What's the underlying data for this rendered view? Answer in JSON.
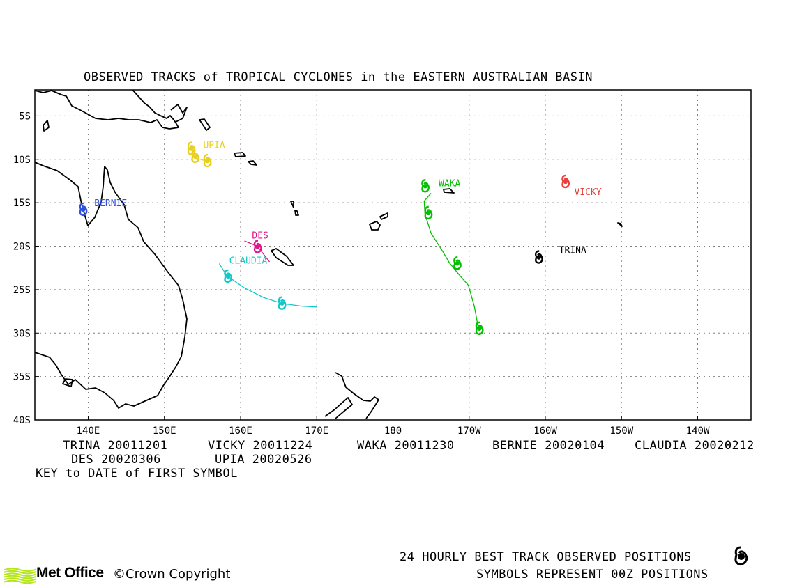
{
  "title": "OBSERVED TRACKS of TROPICAL CYCLONES in the EASTERN AUSTRALIAN BASIN",
  "map": {
    "lon_range": [
      133,
      227
    ],
    "lat_range": [
      -40,
      -2
    ],
    "x_ticks": [
      {
        "lon": 140,
        "label": "140E"
      },
      {
        "lon": 150,
        "label": "150E"
      },
      {
        "lon": 160,
        "label": "160E"
      },
      {
        "lon": 170,
        "label": "170E"
      },
      {
        "lon": 180,
        "label": "180"
      },
      {
        "lon": 190,
        "label": "170W"
      },
      {
        "lon": 200,
        "label": "160W"
      },
      {
        "lon": 210,
        "label": "150W"
      },
      {
        "lon": 220,
        "label": "140W"
      }
    ],
    "y_ticks": [
      {
        "lat": -5,
        "label": "5S"
      },
      {
        "lat": -10,
        "label": "10S"
      },
      {
        "lat": -15,
        "label": "15S"
      },
      {
        "lat": -20,
        "label": "20S"
      },
      {
        "lat": -25,
        "label": "25S"
      },
      {
        "lat": -30,
        "label": "30S"
      },
      {
        "lat": -35,
        "label": "35S"
      },
      {
        "lat": -40,
        "label": "40S"
      }
    ],
    "grid": "dotted"
  },
  "storms": [
    {
      "name": "TRINA",
      "color": "#000000",
      "label_at": [
        201.8,
        -20.4
      ],
      "track": [
        [
          199.1,
          -21.2
        ]
      ],
      "symbols": [
        [
          199.1,
          -21.2
        ]
      ]
    },
    {
      "name": "VICKY",
      "color": "#e8403a",
      "label_at": [
        203.8,
        -13.7
      ],
      "track": [
        [
          202.6,
          -12.5
        ]
      ],
      "symbols": [
        [
          202.6,
          -12.5
        ]
      ]
    },
    {
      "name": "WAKA",
      "color": "#00c000",
      "label_at": [
        186.0,
        -12.7
      ],
      "track": [
        [
          185.0,
          -13.9
        ],
        [
          184.1,
          -14.8
        ],
        [
          184.2,
          -16.3
        ],
        [
          185.0,
          -18.5
        ],
        [
          186.6,
          -20.7
        ],
        [
          187.4,
          -21.9
        ],
        [
          188.6,
          -23.2
        ],
        [
          189.9,
          -24.5
        ],
        [
          190.7,
          -27.0
        ],
        [
          191.2,
          -29.4
        ]
      ],
      "symbols": [
        [
          184.2,
          -13.0
        ],
        [
          184.6,
          -16.1
        ],
        [
          188.4,
          -21.9
        ],
        [
          191.3,
          -29.4
        ]
      ]
    },
    {
      "name": "BERNIE",
      "color": "#3050e0",
      "label_at": [
        140.8,
        -15.0
      ],
      "track": [
        [
          139.3,
          -15.7
        ]
      ],
      "symbols": [
        [
          139.3,
          -15.7
        ]
      ]
    },
    {
      "name": "DES",
      "color": "#e0158a",
      "label_at": [
        161.5,
        -18.7
      ],
      "track": [
        [
          160.5,
          -19.4
        ],
        [
          162.2,
          -20.0
        ],
        [
          163.8,
          -21.8
        ]
      ],
      "symbols": [
        [
          162.2,
          -20.0
        ]
      ]
    },
    {
      "name": "CLAUDIA",
      "color": "#12c8c8",
      "label_at": [
        158.5,
        -21.6
      ],
      "track": [
        [
          157.2,
          -22.0
        ],
        [
          158.2,
          -23.4
        ],
        [
          160.5,
          -24.8
        ],
        [
          163.0,
          -25.9
        ],
        [
          165.5,
          -26.6
        ],
        [
          168.0,
          -26.9
        ],
        [
          170.0,
          -27.0
        ]
      ],
      "symbols": [
        [
          158.3,
          -23.4
        ],
        [
          165.4,
          -26.5
        ]
      ]
    },
    {
      "name": "UPIA",
      "color": "#e8d020",
      "label_at": [
        155.1,
        -8.3
      ],
      "track": [
        [
          153.6,
          -9.0
        ],
        [
          154.0,
          -9.8
        ],
        [
          155.5,
          -10.2
        ]
      ],
      "symbols": [
        [
          153.5,
          -8.7
        ],
        [
          154.0,
          -9.6
        ],
        [
          155.6,
          -10.1
        ]
      ]
    }
  ],
  "key_rows": [
    [
      "TRINA 20011201",
      "VICKY 20011224",
      "WAKA 20011230",
      "BERNIE 20020104",
      "CLAUDIA 20020212"
    ],
    [
      "DES 20020306",
      "UPIA 20020526"
    ]
  ],
  "key_caption": "KEY to DATE of FIRST SYMBOL",
  "footer": {
    "line1": "24 HOURLY BEST TRACK OBSERVED POSITIONS",
    "line2": "SYMBOLS REPRESENT 00Z POSITIONS",
    "logo_text": "Met Office",
    "copyright": "Crown Copyright",
    "logo_color": "#b5e61d"
  }
}
